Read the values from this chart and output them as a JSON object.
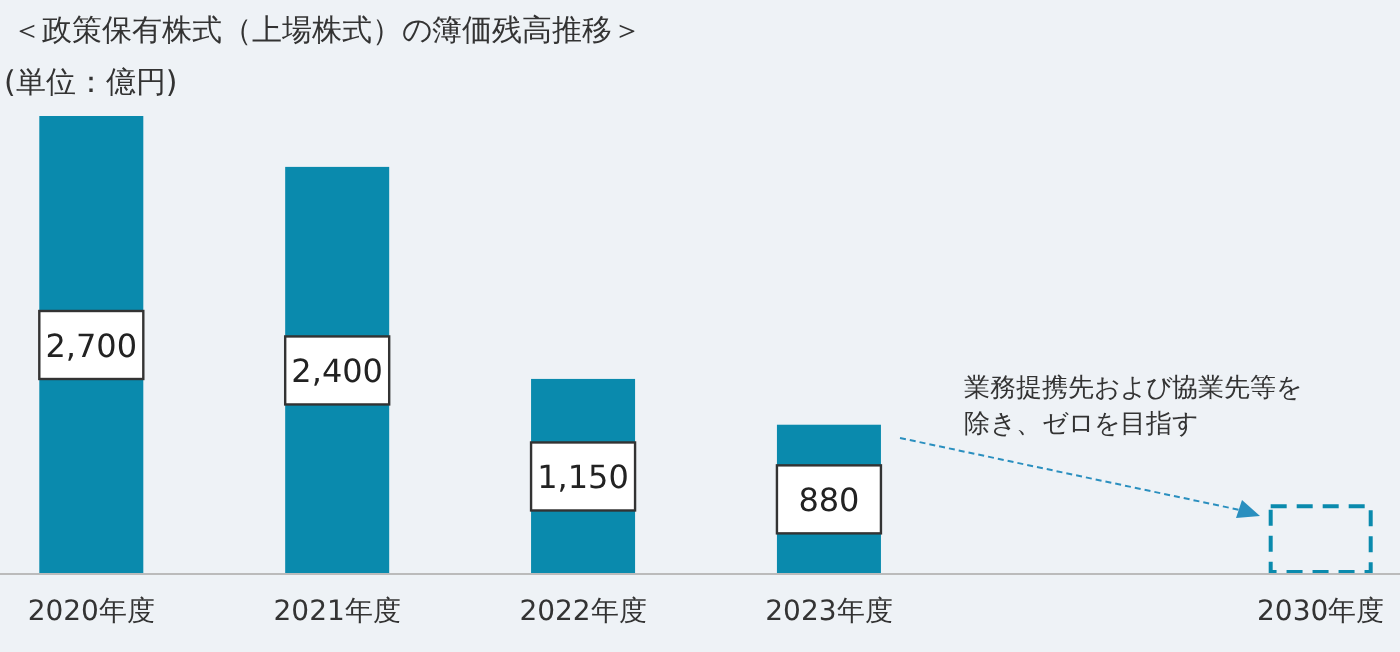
{
  "chart_data": {
    "type": "bar",
    "title": "＜政策保有株式（上場株式）の簿価残高推移＞",
    "subtitle": "(単位：億円)",
    "categories": [
      "2020年度",
      "2021年度",
      "2022年度",
      "2023年度",
      null,
      "2030年度"
    ],
    "series": [
      {
        "color": "#0a8aad",
        "values": [
          2700,
          2400,
          1150,
          880,
          null,
          null
        ],
        "value_labels": [
          "2,700",
          "2,400",
          "1,150",
          "880",
          null,
          null
        ]
      },
      {
        "color": "#0a8aad",
        "line_style": "dashed",
        "values": [
          null,
          null,
          null,
          null,
          null,
          400
        ]
      }
    ],
    "annotations": [
      "業務提携先および協業先等を除き、ゼロを目指す"
    ]
  }
}
